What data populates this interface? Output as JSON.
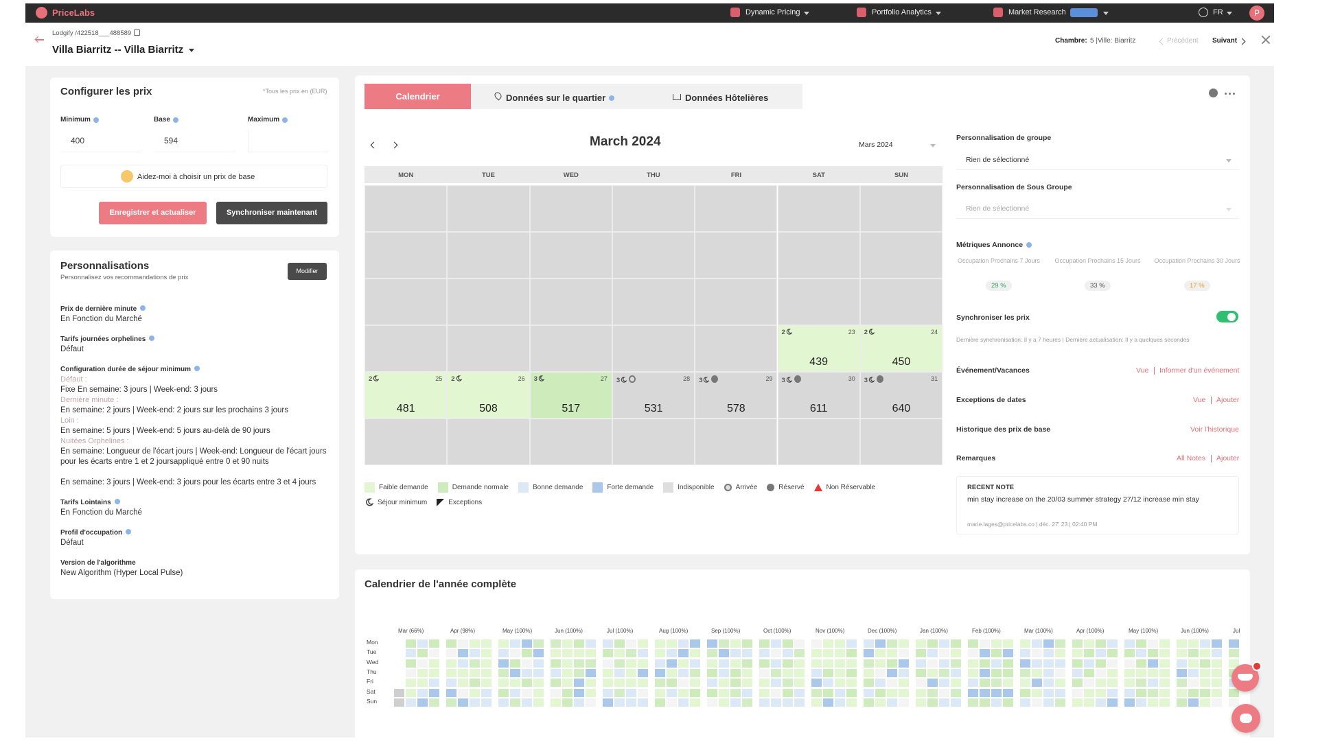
{
  "nav": {
    "brand": "PriceLabs",
    "menu": [
      "Dynamic Pricing",
      "Portfolio Analytics",
      "Market Research"
    ],
    "language": "FR",
    "avatar": "P"
  },
  "header": {
    "breadcrumb": "Lodgify /422518___488589",
    "title": "Villa Biarritz -- Villa Biarritz",
    "room_label": "Chambre:",
    "room_value": "5 |Ville: Biarritz",
    "previous": "Précédent",
    "next": "Suivant"
  },
  "pricing": {
    "title": "Configurer les prix",
    "currency_note": "*Tous les prix en (EUR)",
    "fields": [
      {
        "label": "Minimum",
        "value": 400
      },
      {
        "label": "Base",
        "value": 594
      },
      {
        "label": "Maximum"
      }
    ],
    "help": "Aidez-moi à choisir un prix de base",
    "save_button": "Enregistrer et actualiser",
    "sync_button": "Synchroniser maintenant"
  },
  "customizations": {
    "title": "Personnalisations",
    "subtitle": "Personnalisez vos recommandations de prix",
    "edit_button": "Modifier",
    "items": [
      {
        "label": "Prix de dernière minute",
        "lines": [
          {
            "text": "En Fonction du Marché"
          }
        ]
      },
      {
        "label": "Tarifs journées orphelines",
        "lines": [
          {
            "text": "Défaut"
          }
        ]
      },
      {
        "label": "Configuration durée de séjour minimum",
        "lines": [
          {
            "heading": "Défaut :"
          },
          {
            "text": "Fixe En semaine: 3 jours | Week-end: 3 jours"
          },
          {
            "heading": "Dernière minute :"
          },
          {
            "text": "En semaine: 2 jours | Week-end: 2 jours sur les prochains 3 jours"
          },
          {
            "heading": "Loin :"
          },
          {
            "text": "En semaine: 5 jours | Week-end: 5 jours au-delà de 90 jours"
          },
          {
            "heading": "Nuitées Orphelines :"
          },
          {
            "text": "En semaine: Longueur de l'écart jours | Week-end: Longueur de l'écart jours pour les écarts entre 1 et 2 joursappliqué entre 0 et 90 nuits"
          },
          {
            "text": "En semaine: 3 jours | Week-end: 3 jours pour les écarts entre 3 et 4 jours"
          }
        ]
      },
      {
        "label": "Tarifs Lointains",
        "lines": [
          {
            "text": "En Fonction du Marché"
          }
        ]
      },
      {
        "label": "Profil d'occupation",
        "lines": [
          {
            "text": "Défaut"
          }
        ]
      },
      {
        "label": "Version de l'algorithme",
        "lines": [
          {
            "text": "New Algorithm (Hyper Local Pulse)"
          }
        ]
      }
    ]
  },
  "calendar": {
    "tabs": [
      "Calendrier",
      "Données sur le quartier",
      "Données Hôtelières"
    ],
    "month": "March 2024",
    "month_select": "Mars 2024",
    "weekdays": [
      "MON",
      "TUE",
      "WED",
      "THU",
      "FRI",
      "SAT",
      "SUN"
    ],
    "weeks": [
      [
        null,
        null,
        null,
        null,
        null,
        null,
        null
      ],
      [
        null,
        null,
        null,
        null,
        null,
        null,
        null
      ],
      [
        null,
        null,
        null,
        null,
        null,
        null,
        null
      ],
      [
        null,
        null,
        null,
        null,
        null,
        {
          "day": 23,
          "min_stay": 2,
          "price": 439,
          "fill": "#e3f6d2"
        },
        {
          "day": 24,
          "min_stay": 2,
          "price": 450,
          "fill": "#e3f6d2"
        }
      ],
      [
        {
          "day": 25,
          "min_stay": 2,
          "price": 481,
          "fill": "#e3f6d2"
        },
        {
          "day": 26,
          "min_stay": 2,
          "price": 508,
          "fill": "#e3f6d2"
        },
        {
          "day": 27,
          "min_stay": 3,
          "price": 517,
          "fill": "#cdebbb"
        },
        {
          "day": 28,
          "min_stay": 3,
          "price": 531,
          "fill": "#d8d8d8",
          "marker": "arrival"
        },
        {
          "day": 29,
          "min_stay": 3,
          "price": 578,
          "fill": "#d8d8d8",
          "marker": "reserved"
        },
        {
          "day": 30,
          "min_stay": 3,
          "price": 611,
          "fill": "#d8d8d8",
          "marker": "reserved"
        },
        {
          "day": 31,
          "min_stay": 3,
          "price": 640,
          "fill": "#d8d8d8",
          "marker": "reserved"
        }
      ],
      [
        null,
        null,
        null,
        null,
        null,
        null,
        null
      ]
    ],
    "legend": [
      {
        "label": "Faible demande",
        "color": "#e3f6d2"
      },
      {
        "label": "Demande normale",
        "color": "#cdebbb"
      },
      {
        "label": "Bonne demande",
        "color": "#dbe9f7"
      },
      {
        "label": "Forte demande",
        "color": "#a9c8ea"
      },
      {
        "label": "Indisponible",
        "color": "#dedede"
      },
      {
        "label": "Arrivée",
        "icon": "arrival"
      },
      {
        "label": "Réservé",
        "icon": "reserved"
      },
      {
        "label": "Non Réservable",
        "icon": "warning"
      },
      {
        "label": "Séjour minimum",
        "icon": "moon"
      },
      {
        "label": "Exceptions",
        "icon": "corner"
      }
    ]
  },
  "side": {
    "group_label": "Personnalisation de groupe",
    "group_value": "Rien de sélectionné",
    "subgroup_label": "Personnalisation de Sous Groupe",
    "subgroup_value": "Rien de sélectionné",
    "metrics_title": "Métriques Annonce",
    "metrics": [
      {
        "label": "Occupation Prochains 7 Jours",
        "value": "29 %",
        "color": "#2e9d5b"
      },
      {
        "label": "Occupation Prochains 15 Jours",
        "value": "33 %",
        "color": "#555555"
      },
      {
        "label": "Occupation Prochains 30 Jours",
        "value": "17 %",
        "color": "#e0a020"
      }
    ],
    "sync_label": "Synchroniser les prix",
    "sync_on": true,
    "sync_status": "Dernière synchronisation: Il y a 7 heures | Dernière actualisation: Il y a quelques secondes",
    "rows": [
      {
        "label": "Événement/Vacances",
        "links": [
          "Vue",
          "Informer d'un événement"
        ]
      },
      {
        "label": "Exceptions de dates",
        "links": [
          "Vue",
          "Ajouter"
        ]
      },
      {
        "label": "Historique des prix de base",
        "links": [
          "Voir l'historique"
        ]
      },
      {
        "label": "Remarques",
        "links": [
          "All Notes",
          "Ajouter"
        ]
      }
    ],
    "note": {
      "title": "RECENT NOTE",
      "text": "min stay increase on the 20/03 summer strategy 27/12 increase min stay",
      "meta": "marie.lages@pricelabs.co | déc. 27' 23 | 02:40 PM"
    }
  },
  "year": {
    "title": "Calendrier de l'année complète",
    "weekdays": [
      "Mon",
      "Tue",
      "Wed",
      "Thu",
      "Fri",
      "Sat",
      "Sun"
    ],
    "months": [
      "Mar (66%)",
      "Apr (98%)",
      "May (100%)",
      "Jun (100%)",
      "Jul (100%)",
      "Aug (100%)",
      "Sep (100%)",
      "Oct (100%)",
      "Nov (100%)",
      "Dec (100%)",
      "Jan (100%)",
      "Feb (100%)",
      "Mar (100%)",
      "Apr (100%)",
      "May (100%)",
      "Jun (100%)",
      "Jul"
    ]
  }
}
